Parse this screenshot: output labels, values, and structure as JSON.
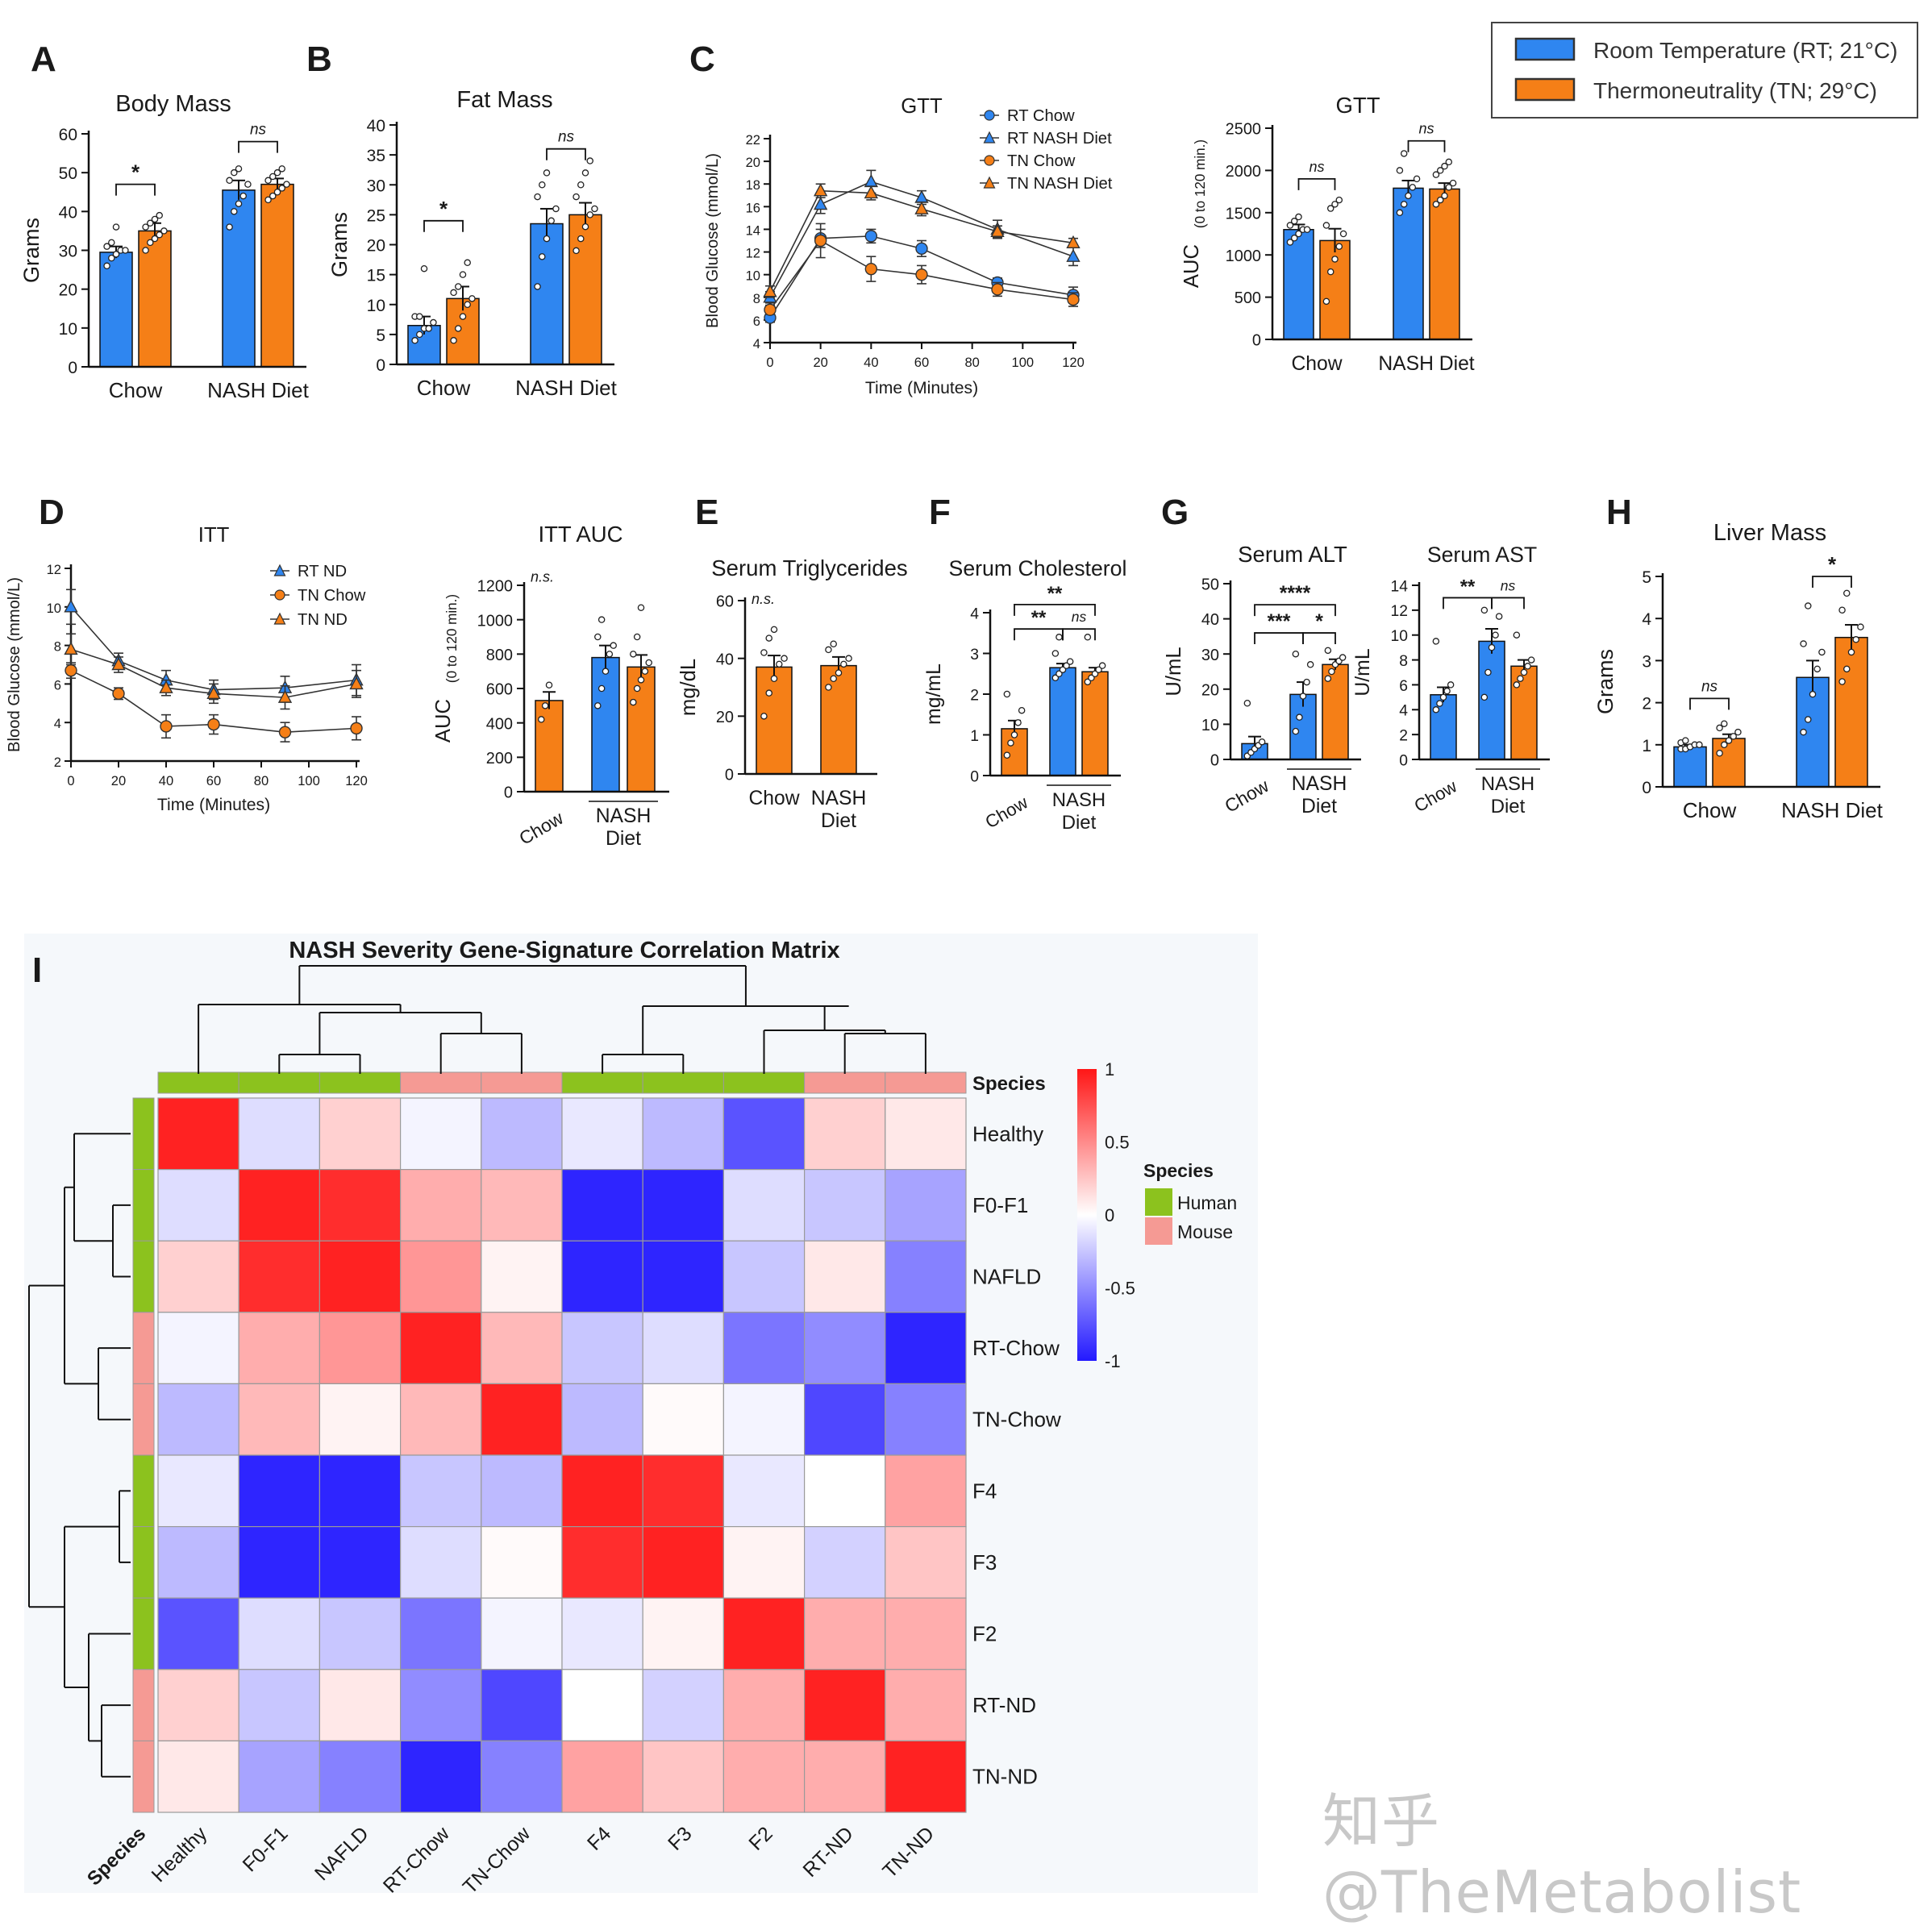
{
  "legend": {
    "items": [
      {
        "label": "Room Temperature (RT; 21°C)",
        "color": "#2f86f0"
      },
      {
        "label": "Thermoneutrality (TN; 29°C)",
        "color": "#f57f17"
      }
    ]
  },
  "colors": {
    "rt": "#2f86f0",
    "tn": "#f57f17",
    "human": "#8cc21e",
    "mouse": "#f59a94"
  },
  "watermark": "知乎 @TheMetabolist",
  "chart_data": [
    {
      "id": "A",
      "panel_letter": "A",
      "type": "bar",
      "title": "Body Mass",
      "ylabel": "Grams",
      "ylim": [
        0,
        60
      ],
      "yticks": [
        0,
        10,
        20,
        30,
        40,
        50,
        60
      ],
      "groups": [
        {
          "label": "Chow",
          "bars": [
            "rt",
            "tn"
          ]
        },
        {
          "label": "NASH Diet",
          "bars": [
            "rt",
            "tn"
          ]
        }
      ],
      "values": [
        29.5,
        35,
        45.5,
        47
      ],
      "errors": [
        1.5,
        2,
        2.5,
        1.5
      ],
      "points": [
        [
          26,
          28,
          29,
          30,
          30,
          31,
          32,
          36
        ],
        [
          30,
          32,
          33,
          34,
          35,
          36,
          37,
          38,
          39
        ],
        [
          36,
          40,
          42,
          44,
          47,
          48,
          50,
          51
        ],
        [
          43,
          44,
          45,
          46,
          47,
          48,
          49,
          50,
          51
        ]
      ],
      "sig": [
        {
          "label": "*",
          "bars": [
            0,
            1
          ],
          "y": 47
        },
        {
          "label": "ns",
          "bars": [
            2,
            3
          ],
          "y": 58
        }
      ]
    },
    {
      "id": "B",
      "panel_letter": "B",
      "type": "bar",
      "title": "Fat Mass",
      "ylabel": "Grams",
      "ylim": [
        0,
        40
      ],
      "yticks": [
        0,
        5,
        10,
        15,
        20,
        25,
        30,
        35,
        40
      ],
      "groups": [
        {
          "label": "Chow",
          "bars": [
            "rt",
            "tn"
          ]
        },
        {
          "label": "NASH Diet",
          "bars": [
            "rt",
            "tn"
          ]
        }
      ],
      "values": [
        6.5,
        11,
        23.5,
        25
      ],
      "errors": [
        1.5,
        2,
        2.5,
        2
      ],
      "points": [
        [
          4,
          5,
          6,
          6,
          7,
          8,
          8,
          16
        ],
        [
          4,
          6,
          8,
          10,
          11,
          12,
          13,
          15,
          17
        ],
        [
          13,
          18,
          21,
          24,
          26,
          28,
          30,
          32
        ],
        [
          19,
          21,
          23,
          25,
          26,
          28,
          30,
          32,
          34
        ]
      ],
      "sig": [
        {
          "label": "*",
          "bars": [
            0,
            1
          ],
          "y": 24
        },
        {
          "label": "ns",
          "bars": [
            2,
            3
          ],
          "y": 36
        }
      ]
    },
    {
      "id": "C",
      "panel_letter": "C",
      "type": "line",
      "title": "GTT",
      "xlabel": "Time (Minutes)",
      "ylabel": "Blood Glucose (mmol/L)",
      "xlim": [
        0,
        120
      ],
      "xticks": [
        0,
        20,
        40,
        60,
        80,
        100,
        120
      ],
      "ylim": [
        4,
        22
      ],
      "yticks": [
        4,
        6,
        8,
        10,
        12,
        14,
        16,
        18,
        20,
        22
      ],
      "x": [
        0,
        20,
        40,
        60,
        90,
        120
      ],
      "series": [
        {
          "name": "RT Chow",
          "color": "rt",
          "marker": "circle",
          "values": [
            6.2,
            13.2,
            13.4,
            12.3,
            9.3,
            8.2
          ],
          "errors": [
            0.4,
            0.8,
            0.6,
            0.7,
            0.4,
            0.7
          ]
        },
        {
          "name": "RT NASH Diet",
          "color": "rt",
          "marker": "triangle",
          "values": [
            8.0,
            16.2,
            18.2,
            16.8,
            14.0,
            11.6
          ],
          "errors": [
            0.5,
            0.8,
            1.0,
            0.6,
            0.8,
            0.8
          ]
        },
        {
          "name": "TN Chow",
          "color": "tn",
          "marker": "circle",
          "values": [
            6.9,
            13.0,
            10.5,
            10.0,
            8.7,
            7.8
          ],
          "errors": [
            0.4,
            1.5,
            1.1,
            0.8,
            0.6,
            0.6
          ]
        },
        {
          "name": "TN NASH Diet",
          "color": "tn",
          "marker": "triangle",
          "values": [
            8.5,
            17.4,
            17.2,
            15.8,
            13.8,
            12.8
          ],
          "errors": [
            0.5,
            0.6,
            0.6,
            0.6,
            0.5,
            0.4
          ]
        }
      ]
    },
    {
      "id": "C2",
      "panel_letter": "",
      "type": "bar",
      "title": "GTT",
      "ylabel": "AUC",
      "ylabel2": "(0 to 120 min.)",
      "ylim": [
        0,
        2500
      ],
      "yticks": [
        0,
        500,
        1000,
        1500,
        2000,
        2500
      ],
      "groups": [
        {
          "label": "Chow",
          "bars": [
            "rt",
            "tn"
          ]
        },
        {
          "label": "NASH Diet",
          "bars": [
            "rt",
            "tn"
          ]
        }
      ],
      "values": [
        1300,
        1170,
        1790,
        1780
      ],
      "errors": [
        60,
        140,
        90,
        70
      ],
      "points": [
        [
          1150,
          1200,
          1250,
          1300,
          1300,
          1350,
          1400,
          1450
        ],
        [
          450,
          800,
          950,
          1100,
          1250,
          1350,
          1550,
          1600,
          1650
        ],
        [
          1500,
          1600,
          1700,
          1800,
          1900,
          2000,
          2200
        ],
        [
          1600,
          1650,
          1700,
          1800,
          1850,
          1950,
          2000,
          2050,
          2100
        ]
      ],
      "sig": [
        {
          "label": "ns",
          "bars": [
            0,
            1
          ],
          "y": 1900
        },
        {
          "label": "ns",
          "bars": [
            2,
            3
          ],
          "y": 2350
        }
      ]
    },
    {
      "id": "D",
      "panel_letter": "D",
      "type": "line",
      "title": "ITT",
      "xlabel": "Time (Minutes)",
      "ylabel": "Blood Glucose (mmol/L)",
      "xlim": [
        0,
        120
      ],
      "xticks": [
        0,
        20,
        40,
        60,
        80,
        100,
        120
      ],
      "ylim": [
        2,
        12
      ],
      "yticks": [
        2,
        4,
        6,
        8,
        10,
        12
      ],
      "x": [
        0,
        20,
        40,
        60,
        90,
        120
      ],
      "series": [
        {
          "name": "RT ND",
          "color": "rt",
          "marker": "triangle",
          "values": [
            10.0,
            7.2,
            6.2,
            5.7,
            5.8,
            6.2
          ],
          "errors": [
            0.9,
            0.4,
            0.5,
            0.5,
            0.6,
            0.8
          ]
        },
        {
          "name": "TN Chow",
          "color": "tn",
          "marker": "circle",
          "values": [
            6.7,
            5.5,
            3.8,
            3.9,
            3.5,
            3.7
          ],
          "errors": [
            0.4,
            0.3,
            0.6,
            0.5,
            0.5,
            0.6
          ]
        },
        {
          "name": "TN ND",
          "color": "tn",
          "marker": "triangle",
          "values": [
            7.8,
            7.0,
            5.8,
            5.5,
            5.3,
            6.0
          ],
          "errors": [
            0.8,
            0.4,
            0.4,
            0.5,
            0.6,
            0.7
          ]
        }
      ]
    },
    {
      "id": "D2",
      "panel_letter": "",
      "type": "bar",
      "title": "ITT AUC",
      "ylabel": "AUC",
      "ylabel2": "(0 to 120 min.)",
      "ylim": [
        0,
        1200
      ],
      "yticks": [
        0,
        200,
        400,
        600,
        800,
        1000,
        1200
      ],
      "groups": [
        {
          "label": "Chow",
          "bars": [
            "tn"
          ]
        },
        {
          "label": "NASH\nDiet",
          "bars": [
            "rt",
            "tn"
          ]
        }
      ],
      "values": [
        530,
        780,
        725
      ],
      "errors": [
        50,
        70,
        70
      ],
      "points": [
        [
          420,
          500,
          620
        ],
        [
          500,
          600,
          700,
          800,
          850,
          900,
          1000
        ],
        [
          520,
          600,
          650,
          700,
          750,
          800,
          900,
          1070
        ]
      ],
      "sig": [
        {
          "label": "n.s.",
          "text_only": true,
          "y": 1240
        }
      ]
    },
    {
      "id": "E",
      "panel_letter": "E",
      "type": "bar",
      "title": "Serum Triglycerides",
      "ylabel": "mg/dL",
      "ylim": [
        0,
        60
      ],
      "yticks": [
        0,
        20,
        40,
        60
      ],
      "groups": [
        {
          "label": "Chow",
          "bars": [
            "tn"
          ]
        },
        {
          "label": "NASH\nDiet",
          "bars": [
            "tn"
          ]
        }
      ],
      "values": [
        37,
        37.5
      ],
      "errors": [
        4,
        3
      ],
      "points": [
        [
          20,
          28,
          33,
          38,
          40,
          42,
          47,
          50
        ],
        [
          30,
          33,
          35,
          38,
          40,
          43,
          45
        ]
      ],
      "sig": [
        {
          "label": "n.s.",
          "text_only": true,
          "y": 60
        }
      ]
    },
    {
      "id": "F",
      "panel_letter": "F",
      "type": "bar",
      "title": "Serum Cholesterol",
      "ylabel": "mg/mL",
      "ylim": [
        0,
        4
      ],
      "yticks": [
        0,
        1,
        2,
        3,
        4
      ],
      "groups": [
        {
          "label": "Chow",
          "bars": [
            "tn"
          ]
        },
        {
          "label": "NASH\nDiet",
          "bars": [
            "rt",
            "tn"
          ]
        }
      ],
      "values": [
        1.15,
        2.65,
        2.55
      ],
      "errors": [
        0.2,
        0.1,
        0.1
      ],
      "points": [
        [
          0.5,
          0.8,
          1.0,
          1.3,
          1.6,
          2.0
        ],
        [
          2.4,
          2.5,
          2.6,
          2.7,
          2.8,
          3.0,
          3.4
        ],
        [
          2.3,
          2.4,
          2.5,
          2.6,
          2.7,
          3.4
        ]
      ],
      "sig": [
        {
          "label": "**",
          "bars": [
            0,
            1
          ],
          "y": 3.6
        },
        {
          "label": "ns",
          "bars": [
            1,
            2
          ],
          "y": 3.6
        },
        {
          "label": "**",
          "bars": [
            0,
            2
          ],
          "y": 4.2
        }
      ]
    },
    {
      "id": "G1",
      "panel_letter": "G",
      "type": "bar",
      "title": "Serum ALT",
      "ylabel": "U/mL",
      "ylim": [
        0,
        50
      ],
      "yticks": [
        0,
        10,
        20,
        30,
        40,
        50
      ],
      "groups": [
        {
          "label": "Chow",
          "bars": [
            "rt"
          ]
        },
        {
          "label": "NASH\nDiet",
          "bars": [
            "rt",
            "tn"
          ]
        }
      ],
      "values": [
        4.5,
        18.5,
        27
      ],
      "errors": [
        2,
        3.5,
        1.5
      ],
      "points": [
        [
          1,
          2,
          3,
          4,
          5,
          16
        ],
        [
          8,
          12,
          18,
          22,
          27,
          30
        ],
        [
          23,
          25,
          27,
          28,
          29,
          31
        ]
      ],
      "sig": [
        {
          "label": "***",
          "bars": [
            0,
            1
          ],
          "y": 36
        },
        {
          "label": "*",
          "bars": [
            1,
            2
          ],
          "y": 36
        },
        {
          "label": "****",
          "bars": [
            0,
            2
          ],
          "y": 44
        }
      ]
    },
    {
      "id": "G2",
      "panel_letter": "",
      "type": "bar",
      "title": "Serum AST",
      "ylabel": "U/mL",
      "ylim": [
        0,
        14
      ],
      "yticks": [
        0,
        2,
        4,
        6,
        8,
        10,
        12,
        14
      ],
      "groups": [
        {
          "label": "Chow",
          "bars": [
            "rt"
          ]
        },
        {
          "label": "NASH\nDiet",
          "bars": [
            "rt",
            "tn"
          ]
        }
      ],
      "values": [
        5.2,
        9.5,
        7.5
      ],
      "errors": [
        0.6,
        1.0,
        0.5
      ],
      "points": [
        [
          4,
          4.5,
          5,
          5.5,
          6,
          9.5
        ],
        [
          5,
          7,
          9,
          10,
          11.5,
          12
        ],
        [
          6,
          6.5,
          7,
          7.5,
          8,
          10
        ]
      ],
      "sig": [
        {
          "label": "**",
          "bars": [
            0,
            1
          ],
          "y": 13
        },
        {
          "label": "ns",
          "bars": [
            1,
            2
          ],
          "y": 13
        }
      ]
    },
    {
      "id": "H",
      "panel_letter": "H",
      "type": "bar",
      "title": "Liver Mass",
      "ylabel": "Grams",
      "ylim": [
        0,
        5
      ],
      "yticks": [
        0,
        1,
        2,
        3,
        4,
        5
      ],
      "groups": [
        {
          "label": "Chow",
          "bars": [
            "rt",
            "tn"
          ]
        },
        {
          "label": "NASH Diet",
          "bars": [
            "rt",
            "tn"
          ]
        }
      ],
      "values": [
        0.95,
        1.15,
        2.6,
        3.55
      ],
      "errors": [
        0.05,
        0.1,
        0.4,
        0.3
      ],
      "points": [
        [
          0.9,
          0.9,
          0.95,
          1.0,
          1.0,
          1.05,
          1.1
        ],
        [
          0.8,
          1.0,
          1.1,
          1.2,
          1.3,
          1.4,
          1.5
        ],
        [
          1.3,
          1.6,
          2.2,
          2.8,
          3.2,
          3.4,
          4.3
        ],
        [
          2.5,
          2.8,
          3.2,
          3.5,
          3.8,
          4.2,
          4.6
        ]
      ],
      "sig": [
        {
          "label": "ns",
          "bars": [
            0,
            1
          ],
          "y": 2.1
        },
        {
          "label": "*",
          "bars": [
            2,
            3
          ],
          "y": 5.0
        }
      ]
    },
    {
      "id": "I",
      "panel_letter": "I",
      "type": "heatmap",
      "title": "NASH Severity Gene-Signature Correlation Matrix",
      "labels": [
        "Healthy",
        "F0-F1",
        "NAFLD",
        "RT-Chow",
        "TN-Chow",
        "F4",
        "F3",
        "F2",
        "RT-ND",
        "TN-ND"
      ],
      "species": [
        "Human",
        "Human",
        "Human",
        "Mouse",
        "Mouse",
        "Human",
        "Human",
        "Human",
        "Mouse",
        "Mouse"
      ],
      "annotation_title": "Species",
      "species_legend": {
        "title": "Species",
        "items": [
          "Human",
          "Mouse"
        ]
      },
      "colorbar": {
        "min": -1,
        "max": 1,
        "ticks": [
          1,
          0.5,
          0,
          -0.5,
          -1
        ]
      },
      "matrix": [
        [
          0.95,
          -0.15,
          0.2,
          -0.05,
          -0.3,
          -0.1,
          -0.3,
          -0.75,
          0.2,
          0.1
        ],
        [
          -0.15,
          0.95,
          0.9,
          0.35,
          0.3,
          -0.95,
          -0.95,
          -0.15,
          -0.25,
          -0.4
        ],
        [
          0.2,
          0.9,
          0.95,
          0.45,
          0.05,
          -0.95,
          -0.95,
          -0.25,
          0.1,
          -0.55
        ],
        [
          -0.05,
          0.35,
          0.45,
          0.95,
          0.3,
          -0.25,
          -0.15,
          -0.6,
          -0.5,
          -0.95
        ],
        [
          -0.3,
          0.3,
          0.05,
          0.3,
          0.95,
          -0.3,
          0.02,
          -0.05,
          -0.8,
          -0.55
        ],
        [
          -0.1,
          -0.95,
          -0.95,
          -0.25,
          -0.3,
          0.95,
          0.9,
          -0.1,
          0.0,
          0.4
        ],
        [
          -0.3,
          -0.95,
          -0.95,
          -0.15,
          0.02,
          0.9,
          0.95,
          0.05,
          -0.2,
          0.25
        ],
        [
          -0.75,
          -0.15,
          -0.25,
          -0.6,
          -0.05,
          -0.1,
          0.05,
          0.95,
          0.35,
          0.35
        ],
        [
          0.2,
          -0.25,
          0.1,
          -0.5,
          -0.8,
          0.0,
          -0.2,
          0.35,
          0.95,
          0.35
        ],
        [
          0.1,
          -0.4,
          -0.55,
          -0.95,
          -0.55,
          0.4,
          0.25,
          0.35,
          0.35,
          0.95
        ]
      ]
    }
  ]
}
